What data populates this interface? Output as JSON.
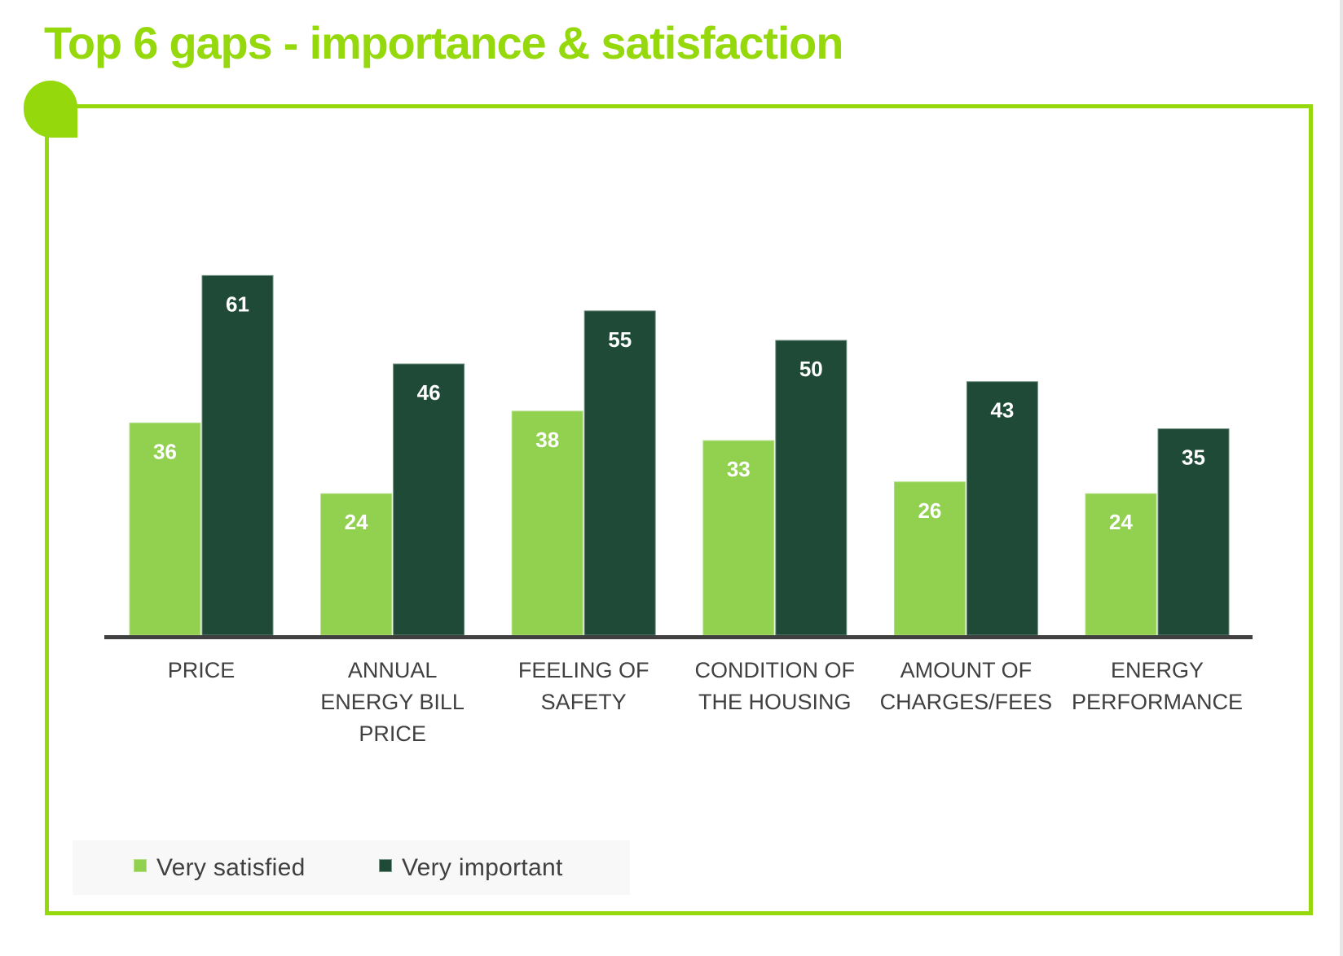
{
  "title": "Top 6 gaps - importance & satisfaction",
  "colors": {
    "accent": "#95D90C",
    "very_satisfied": "#92D050",
    "very_important": "#1F4A37",
    "axis": "#404040",
    "label_text": "#404040",
    "value_text": "#FFFFFF"
  },
  "legend": {
    "items": [
      {
        "label": "Very satisfied",
        "color": "#92D050"
      },
      {
        "label": "Very important",
        "color": "#1F4A37"
      }
    ],
    "position": "bottom-left"
  },
  "chart_data": {
    "type": "bar",
    "title": "Top 6 gaps - importance & satisfaction",
    "xlabel": "",
    "ylabel": "",
    "ylim": [
      0,
      70
    ],
    "grid": false,
    "legend_position": "bottom-left",
    "categories": [
      [
        "PRICE"
      ],
      [
        "ANNUAL",
        "ENERGY BILL",
        "PRICE"
      ],
      [
        "FEELING OF",
        "SAFETY"
      ],
      [
        "CONDITION OF",
        "THE HOUSING"
      ],
      [
        "AMOUNT OF",
        "CHARGES/FEES"
      ],
      [
        "ENERGY",
        "PERFORMANCE"
      ]
    ],
    "category_names": [
      "PRICE",
      "ANNUAL ENERGY BILL PRICE",
      "FEELING OF SAFETY",
      "CONDITION OF THE HOUSING",
      "AMOUNT OF CHARGES/FEES",
      "ENERGY PERFORMANCE"
    ],
    "series": [
      {
        "name": "Very satisfied",
        "color": "#92D050",
        "values": [
          36,
          24,
          38,
          33,
          26,
          24
        ]
      },
      {
        "name": "Very important",
        "color": "#1F4A37",
        "values": [
          61,
          46,
          55,
          50,
          43,
          35
        ]
      }
    ],
    "data_labels": true
  }
}
